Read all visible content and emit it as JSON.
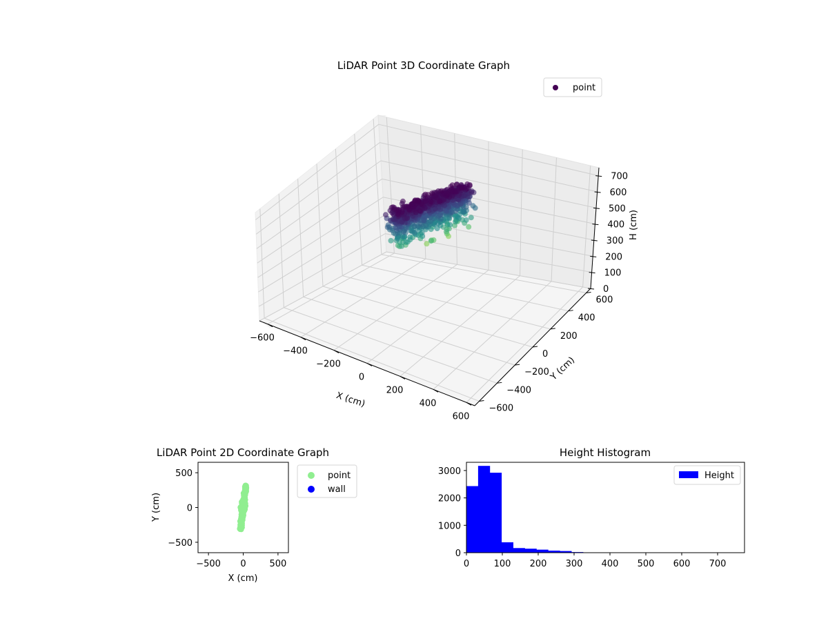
{
  "chart_data": [
    {
      "type": "scatter",
      "projection": "3d",
      "title": "LiDAR Point 3D Coordinate Graph",
      "xlabel": "X (cm)",
      "ylabel": "Y (cm)",
      "zlabel": "H (cm)",
      "xlim": [
        -650,
        650
      ],
      "ylim": [
        -650,
        650
      ],
      "zlim": [
        750,
        0
      ],
      "xticks": [
        -600,
        -400,
        -200,
        0,
        200,
        400,
        600
      ],
      "yticks": [
        -600,
        -400,
        -200,
        0,
        200,
        400,
        600
      ],
      "zticks": [
        0,
        100,
        200,
        300,
        400,
        500,
        600,
        700
      ],
      "grid": true,
      "legend": {
        "position": "top-right",
        "entries": [
          "point"
        ]
      },
      "colormap": "viridis",
      "series": [
        {
          "name": "point",
          "color": "#440154",
          "approximate_cloud": {
            "x_range": [
              -120,
              120
            ],
            "y_range": [
              -320,
              320
            ],
            "h_range": [
              0,
              330
            ],
            "shape": "elongated cloud centred near x=0, spread along y, denser at low heights"
          }
        }
      ]
    },
    {
      "type": "scatter",
      "title": "LiDAR Point 2D Coordinate Graph",
      "xlabel": "X (cm)",
      "ylabel": "Y (cm)",
      "xlim": [
        -650,
        650
      ],
      "ylim": [
        -650,
        650
      ],
      "xticks": [
        -500,
        0,
        500
      ],
      "yticks": [
        -500,
        0,
        500
      ],
      "grid": false,
      "legend": {
        "position": "outside-right",
        "entries": [
          "point",
          "wall"
        ]
      },
      "series": [
        {
          "name": "point",
          "color": "#90ee90",
          "approximate_cloud": {
            "x_range": [
              -120,
              120
            ],
            "y_range": [
              -320,
              320
            ],
            "shape": "narrow vertical band with a wider section around y=-50 to 80"
          }
        },
        {
          "name": "wall",
          "color": "#0000ff",
          "points": []
        }
      ]
    },
    {
      "type": "bar",
      "subtype": "histogram",
      "title": "Height Histogram",
      "xlim": [
        0,
        775
      ],
      "ylim": [
        0,
        3300
      ],
      "xticks": [
        0,
        100,
        200,
        300,
        400,
        500,
        600,
        700
      ],
      "yticks": [
        0,
        1000,
        2000,
        3000
      ],
      "grid": false,
      "legend": {
        "position": "top-right",
        "entries": [
          "Height"
        ]
      },
      "series": [
        {
          "name": "Height",
          "color": "#0000ff",
          "bin_edges": [
            0,
            32.5,
            65,
            97.5,
            130,
            162.5,
            195,
            227.5,
            260,
            292.5,
            325,
            357.5,
            390,
            422.5,
            455,
            487.5,
            520,
            552.5,
            585,
            617.5,
            650,
            682.5,
            715,
            747.5
          ],
          "counts": [
            2430,
            3170,
            2920,
            380,
            170,
            145,
            110,
            75,
            60,
            22,
            4,
            2,
            1,
            1,
            1,
            1,
            1,
            1,
            1,
            1,
            1,
            1,
            1
          ]
        }
      ]
    }
  ]
}
